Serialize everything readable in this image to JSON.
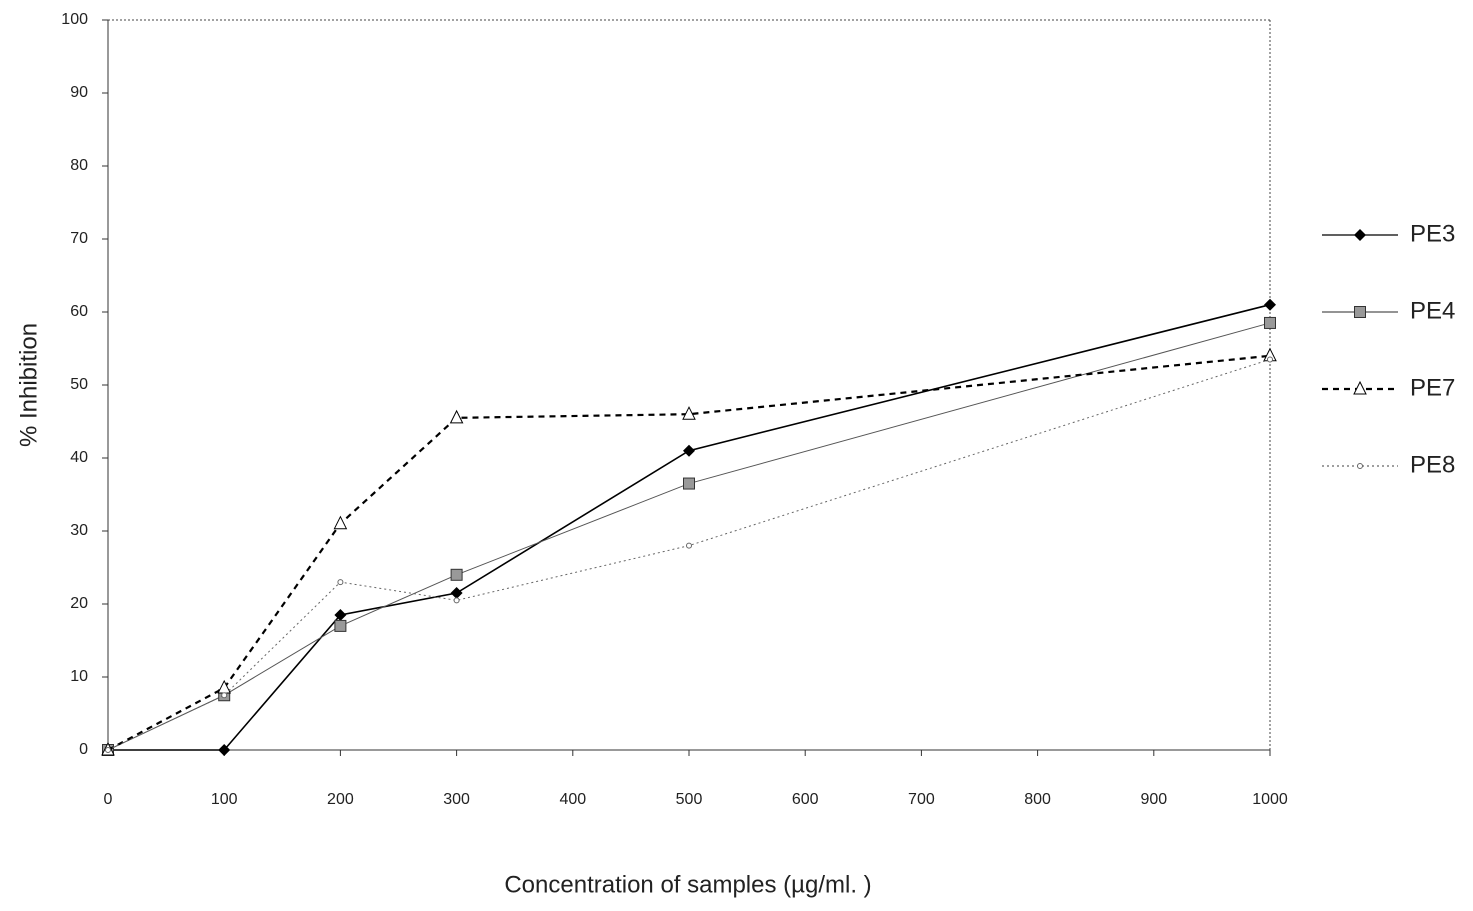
{
  "chart_data": {
    "type": "line",
    "x_label": "Concentration of samples (µg/ml. )",
    "y_label": "% Inhibition",
    "x": [
      0,
      100,
      200,
      300,
      500,
      1000
    ],
    "series": [
      {
        "name": "PE3",
        "color": "#000000",
        "marker": "diamond",
        "line_style": "solid",
        "values": [
          0,
          0,
          18.5,
          21.5,
          41,
          61
        ]
      },
      {
        "name": "PE4",
        "color": "#555555",
        "marker": "square",
        "line_style": "solid",
        "values": [
          0,
          7.5,
          17,
          24,
          36.5,
          58.5
        ]
      },
      {
        "name": "PE7",
        "color": "#000000",
        "marker": "triangle",
        "line_style": "dashed",
        "values": [
          0,
          8.5,
          31,
          45.5,
          46,
          54
        ]
      },
      {
        "name": "PE8",
        "color": "#666666",
        "marker": "circle",
        "line_style": "dotted",
        "values": [
          0,
          7.5,
          23,
          20.5,
          28,
          53.5
        ]
      }
    ],
    "xlim": [
      0,
      1000
    ],
    "xticks": [
      0,
      100,
      200,
      300,
      400,
      500,
      600,
      700,
      800,
      900,
      1000
    ],
    "ylim": [
      0,
      100
    ],
    "yticks": [
      0,
      10,
      20,
      30,
      40,
      50,
      60,
      70,
      80,
      90,
      100
    ],
    "legend": "right"
  }
}
